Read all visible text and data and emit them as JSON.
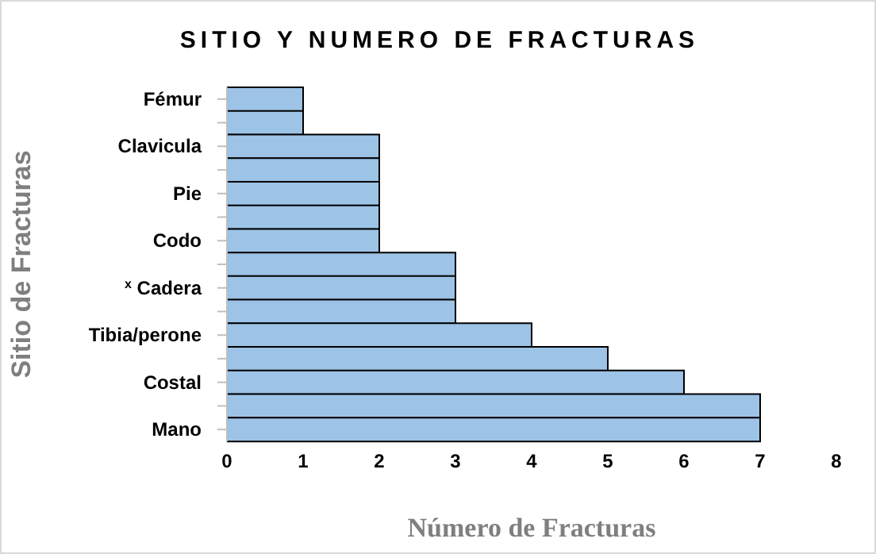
{
  "chart_data": {
    "type": "bar",
    "orientation": "horizontal",
    "title": "SITIO Y NUMERO DE FRACTURAS",
    "xlabel": "Número de Fracturas",
    "ylabel": "Sitio de Fracturas",
    "categories": [
      "Fémur",
      null,
      "Clavicula",
      null,
      "Pie",
      null,
      "Codo",
      null,
      "$^{x}$ Cadera",
      null,
      "Tibia/perone",
      null,
      "Costal",
      null,
      "Mano"
    ],
    "values": [
      1,
      1,
      2,
      2,
      2,
      2,
      2,
      3,
      3,
      3,
      4,
      5,
      6,
      7,
      7
    ],
    "color": "#9dc3e6",
    "xlim": [
      0,
      8
    ],
    "xticks": [
      0,
      1,
      2,
      3,
      4,
      5,
      6,
      7,
      8
    ],
    "grid": false
  }
}
